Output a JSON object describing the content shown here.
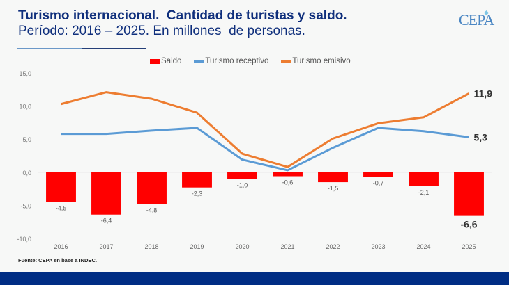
{
  "header": {
    "title": "Turismo internacional.  Cantidad de turistas y saldo.",
    "subtitle": "Período: 2016 – 2025. En millones  de personas.",
    "logo": "CEPA"
  },
  "source": "Fuente: CEPA en base a INDEC.",
  "colors": {
    "saldo": "#ff0000",
    "receptivo": "#5b9bd5",
    "emisivo": "#ed7d31",
    "title": "#0f2f7c",
    "footer": "#002d84"
  },
  "chart_data": {
    "type": "bar+line",
    "title": "Turismo internacional. Cantidad de turistas y saldo.",
    "subtitle": "Período: 2016 – 2025. En millones de personas.",
    "xlabel": "",
    "ylabel": "",
    "categories": [
      "2016",
      "2017",
      "2018",
      "2019",
      "2020",
      "2021",
      "2022",
      "2023",
      "2024",
      "2025"
    ],
    "ylim": [
      -10,
      15
    ],
    "yticks": [
      15,
      10,
      5,
      0,
      -5,
      -10
    ],
    "ytick_labels": [
      "15,0",
      "10,0",
      "5,0",
      "0,0",
      "-5,0",
      "-10,0"
    ],
    "grid": false,
    "legend_position": "top-center",
    "series": [
      {
        "name": "Saldo",
        "type": "bar",
        "values": [
          -4.5,
          -6.4,
          -4.8,
          -2.3,
          -1.0,
          -0.6,
          -1.5,
          -0.7,
          -2.1,
          -6.6
        ],
        "labels": [
          "-4,5",
          "-6,4",
          "-4,8",
          "-2,3",
          "-1,0",
          "-0,6",
          "-1,5",
          "-0,7",
          "-2,1",
          "-6,6"
        ]
      },
      {
        "name": "Turismo receptivo",
        "type": "line",
        "values": [
          5.8,
          5.8,
          6.3,
          6.7,
          1.9,
          0.3,
          3.7,
          6.7,
          6.2,
          5.3
        ],
        "end_label": "5,3"
      },
      {
        "name": "Turismo emisivo",
        "type": "line",
        "values": [
          10.3,
          12.1,
          11.1,
          9.0,
          2.8,
          0.8,
          5.1,
          7.4,
          8.3,
          11.9
        ],
        "end_label": "11,9"
      }
    ]
  }
}
